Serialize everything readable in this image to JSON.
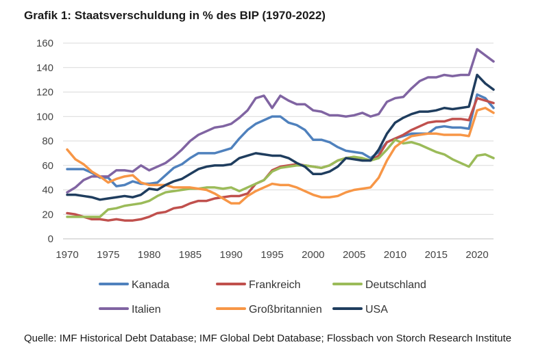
{
  "chart_data": {
    "type": "line",
    "title": "Grafik 1: Staatsverschuldung in % des BIP (1970-2022)",
    "xlabel": "",
    "ylabel": "",
    "xlim": [
      1970,
      2022
    ],
    "ylim": [
      0,
      160
    ],
    "yticks": [
      0,
      20,
      40,
      60,
      80,
      100,
      120,
      140,
      160
    ],
    "xticks": [
      1970,
      1975,
      1980,
      1985,
      1990,
      1995,
      2000,
      2005,
      2010,
      2015,
      2020
    ],
    "grid": "horizontal",
    "legend": "bottom",
    "x": [
      1970,
      1971,
      1972,
      1973,
      1974,
      1975,
      1976,
      1977,
      1978,
      1979,
      1980,
      1981,
      1982,
      1983,
      1984,
      1985,
      1986,
      1987,
      1988,
      1989,
      1990,
      1991,
      1992,
      1993,
      1994,
      1995,
      1996,
      1997,
      1998,
      1999,
      2000,
      2001,
      2002,
      2003,
      2004,
      2005,
      2006,
      2007,
      2008,
      2009,
      2010,
      2011,
      2012,
      2013,
      2014,
      2015,
      2016,
      2017,
      2018,
      2019,
      2020,
      2021,
      2022
    ],
    "series": [
      {
        "name": "Kanada",
        "color": "#4f81bd",
        "values": [
          57,
          57,
          57,
          54,
          50,
          50,
          43,
          44,
          47,
          45,
          45,
          46,
          52,
          58,
          61,
          66,
          70,
          70,
          70,
          72,
          74,
          82,
          89,
          94,
          97,
          100,
          100,
          95,
          93,
          89,
          81,
          81,
          79,
          75,
          72,
          71,
          70,
          66,
          71,
          79,
          82,
          84,
          86,
          86,
          86,
          91,
          92,
          91,
          91,
          90,
          118,
          115,
          107
        ]
      },
      {
        "name": "Frankreich",
        "color": "#c0504d",
        "values": [
          21,
          20,
          18,
          16,
          16,
          15,
          16,
          15,
          15,
          16,
          18,
          21,
          22,
          25,
          26,
          29,
          31,
          31,
          33,
          34,
          35,
          35,
          37,
          45,
          48,
          56,
          59,
          60,
          61,
          60,
          59,
          58,
          60,
          64,
          66,
          67,
          65,
          64,
          68,
          79,
          82,
          85,
          89,
          92,
          95,
          96,
          96,
          98,
          98,
          97,
          115,
          113,
          111
        ]
      },
      {
        "name": "Deutschland",
        "color": "#9bbb59",
        "values": [
          18,
          18,
          18,
          18,
          18,
          24,
          25,
          27,
          28,
          29,
          31,
          35,
          38,
          39,
          40,
          41,
          41,
          42,
          42,
          41,
          42,
          39,
          42,
          45,
          48,
          55,
          58,
          59,
          60,
          60,
          59,
          58,
          60,
          64,
          66,
          67,
          66,
          64,
          66,
          73,
          81,
          78,
          79,
          77,
          74,
          71,
          69,
          65,
          62,
          59,
          68,
          69,
          66
        ]
      },
      {
        "name": "Italien",
        "color": "#8064a2",
        "values": [
          38,
          42,
          48,
          51,
          51,
          51,
          56,
          56,
          55,
          60,
          56,
          59,
          62,
          67,
          73,
          80,
          85,
          88,
          91,
          92,
          94,
          99,
          105,
          115,
          117,
          107,
          117,
          113,
          110,
          110,
          105,
          104,
          101,
          101,
          100,
          101,
          103,
          100,
          102,
          112,
          115,
          116,
          123,
          129,
          132,
          132,
          134,
          133,
          134,
          134,
          155,
          150,
          145
        ]
      },
      {
        "name": "Großbritannien",
        "color": "#f79646",
        "values": [
          73,
          65,
          61,
          55,
          51,
          46,
          49,
          51,
          52,
          46,
          44,
          44,
          44,
          42,
          42,
          42,
          41,
          40,
          37,
          33,
          29,
          29,
          35,
          39,
          42,
          45,
          44,
          44,
          42,
          39,
          36,
          34,
          34,
          35,
          38,
          40,
          41,
          42,
          50,
          64,
          75,
          80,
          84,
          85,
          86,
          86,
          85,
          85,
          85,
          84,
          105,
          107,
          103
        ]
      },
      {
        "name": "USA",
        "color": "#1f3d5e",
        "values": [
          36,
          36,
          35,
          34,
          32,
          33,
          34,
          35,
          34,
          36,
          41,
          40,
          44,
          47,
          49,
          53,
          57,
          59,
          60,
          60,
          61,
          66,
          68,
          70,
          69,
          68,
          68,
          66,
          62,
          59,
          53,
          53,
          55,
          59,
          66,
          65,
          64,
          64,
          73,
          86,
          95,
          99,
          102,
          104,
          104,
          105,
          107,
          106,
          107,
          108,
          134,
          127,
          122
        ]
      }
    ]
  },
  "source": "Quelle: IMF Historical Debt Database; IMF Global Debt Database; Flossbach von Storch Research Institute"
}
